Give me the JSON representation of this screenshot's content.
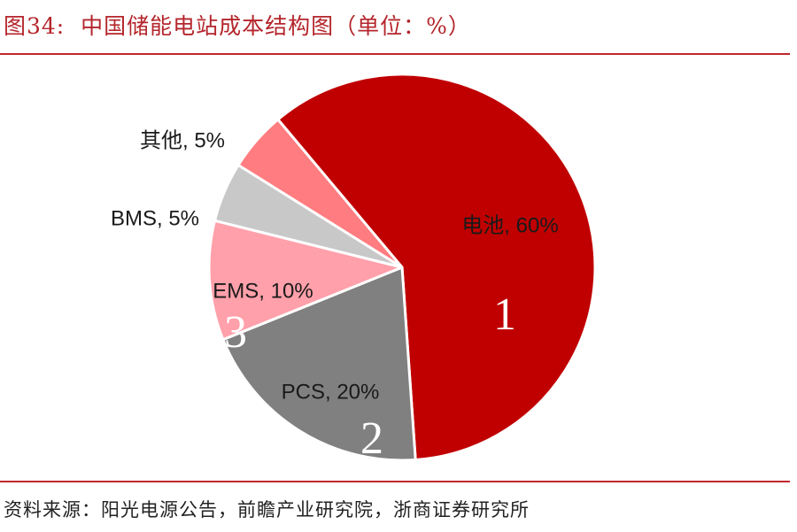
{
  "figure_title": "图34:  中国储能电站成本结构图（单位：%）",
  "source_note": "资料来源：阳光电源公告，前瞻产业研究院，浙商证券研究所",
  "chart_data": {
    "type": "pie",
    "title": "中国储能电站成本结构图（单位：%）",
    "slices": [
      {
        "label": "电池",
        "value": 60,
        "color": "#c00000",
        "marker": "1"
      },
      {
        "label": "PCS",
        "value": 20,
        "color": "#808080",
        "marker": "2"
      },
      {
        "label": "EMS",
        "value": 10,
        "color": "#ffa0aa",
        "marker": "3"
      },
      {
        "label": "BMS",
        "value": 5,
        "color": "#c8c8c8"
      },
      {
        "label": "其他",
        "value": 5,
        "color": "#ff7c80"
      }
    ],
    "data_labels": [
      "电池, 60%",
      "PCS, 20%",
      "EMS, 10%",
      "BMS, 5%",
      "其他, 5%"
    ]
  }
}
